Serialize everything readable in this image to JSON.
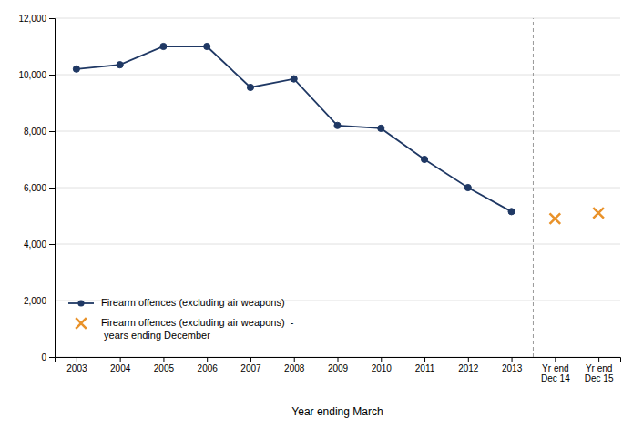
{
  "chart_data": {
    "type": "line",
    "categories": [
      "2003",
      "2004",
      "2005",
      "2006",
      "2007",
      "2008",
      "2009",
      "2010",
      "2011",
      "2012",
      "2013",
      "Yr end\nDec 14",
      "Yr end\nDec 15"
    ],
    "series": [
      {
        "name": "Firearm offences (excluding air weapons)",
        "color": "#1F3864",
        "marker": "circle",
        "line_style": "solid",
        "values": [
          10200,
          10350,
          11000,
          11000,
          9550,
          9850,
          8200,
          8100,
          7000,
          6000,
          5150,
          null,
          null
        ]
      },
      {
        "name": "Firearm offences (excluding air weapons)  -\n years ending December",
        "color": "#E9922A",
        "marker": "x",
        "line_style": "none",
        "values": [
          null,
          null,
          null,
          null,
          null,
          null,
          null,
          null,
          null,
          null,
          null,
          4900,
          5100
        ]
      }
    ],
    "xlabel": "Year ending March",
    "ylim": [
      0,
      12000
    ],
    "yticks": [
      0,
      {
        "value": 2000,
        "label": "2,000"
      },
      {
        "value": 4000,
        "label": "4,000"
      },
      {
        "value": 6000,
        "label": "6,000"
      },
      {
        "value": 8000,
        "label": "8,000"
      },
      {
        "value": 10000,
        "label": "10,000"
      },
      {
        "value": 12000,
        "label": "12,000"
      }
    ],
    "grid": true,
    "legend": "lower left"
  }
}
